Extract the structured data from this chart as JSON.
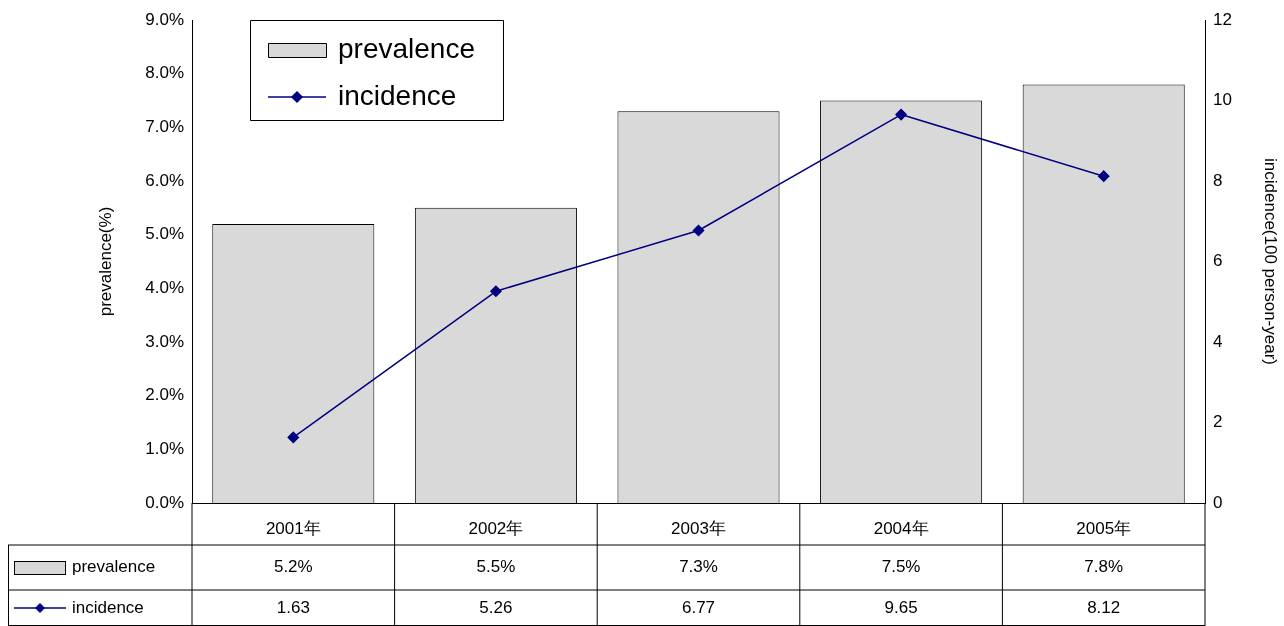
{
  "chart_data": {
    "type": "bar",
    "categories": [
      "2001年",
      "2002年",
      "2003年",
      "2004年",
      "2005年"
    ],
    "series": [
      {
        "name": "prevalence",
        "color": "#d9d9d9",
        "values": [
          5.2,
          5.5,
          7.3,
          7.5,
          7.8
        ],
        "value_labels": [
          "5.2%",
          "5.5%",
          "7.3%",
          "7.5%",
          "7.8%"
        ]
      },
      {
        "name": "incidence",
        "type": "line",
        "axis": "y2",
        "color": "#000080",
        "values": [
          1.63,
          5.26,
          6.77,
          9.65,
          8.12
        ],
        "value_labels": [
          "1.63",
          "5.26",
          "6.77",
          "9.65",
          "8.12"
        ]
      }
    ],
    "ylabel": "prevalence(%)",
    "y2label": "incidence(100 person-year)",
    "ylim": [
      0,
      9
    ],
    "yticks": [
      {
        "value": 0,
        "label": "0.0%"
      },
      {
        "value": 1,
        "label": "1.0%"
      },
      {
        "value": 2,
        "label": "2.0%"
      },
      {
        "value": 3,
        "label": "3.0%"
      },
      {
        "value": 4,
        "label": "4.0%"
      },
      {
        "value": 5,
        "label": "5.0%"
      },
      {
        "value": 6,
        "label": "6.0%"
      },
      {
        "value": 7,
        "label": "7.0%"
      },
      {
        "value": 8,
        "label": "8.0%"
      },
      {
        "value": 9,
        "label": "9.0%"
      }
    ],
    "y2lim": [
      0,
      12
    ],
    "y2ticks": [
      0,
      2,
      4,
      6,
      8,
      10,
      12
    ],
    "legend": "top left",
    "marker": "diamond",
    "line_style": "solid"
  }
}
